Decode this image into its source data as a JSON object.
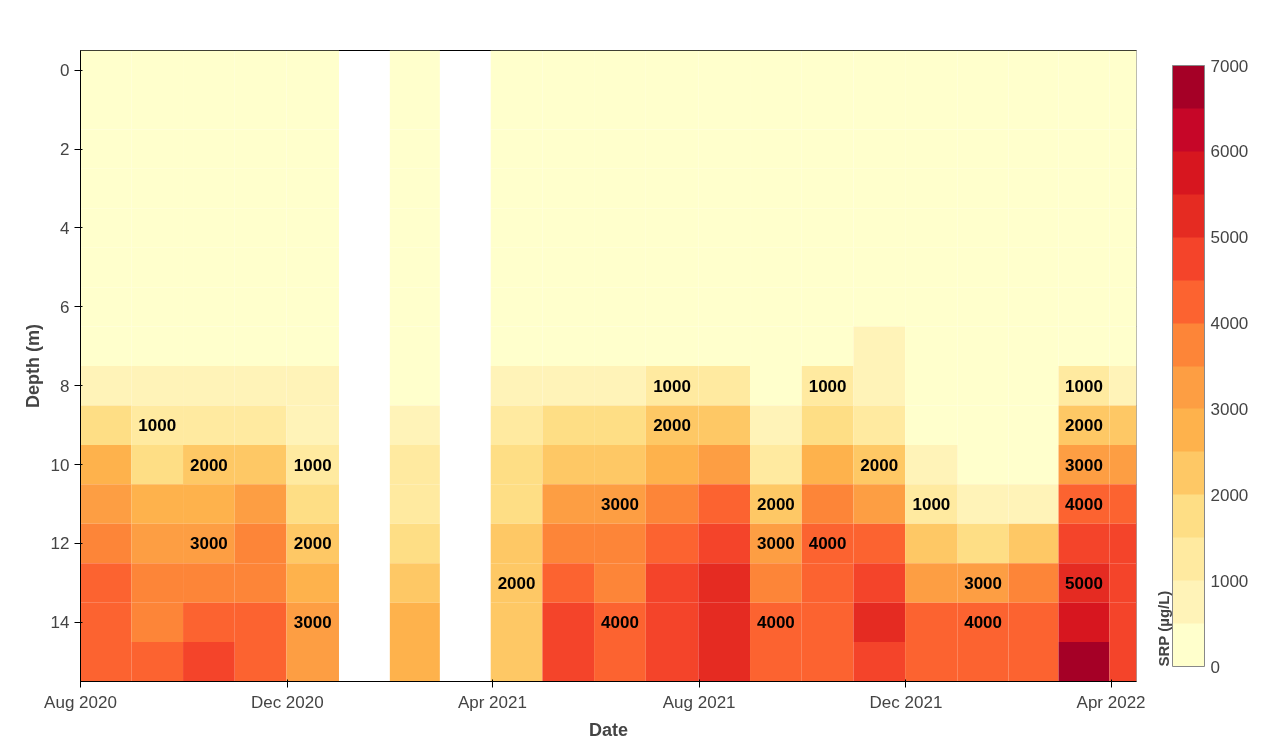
{
  "chart_data": {
    "type": "heatmap",
    "xlabel": "Date",
    "ylabel": "Depth (m)",
    "clabel": "SRP (µg/L)",
    "x": [
      "2020-08-16",
      "2020-09-15",
      "2020-10-16",
      "2020-11-15",
      "2020-12-16",
      "2021-01-16",
      "2021-02-14",
      "2021-03-16",
      "2021-04-15",
      "2021-05-16",
      "2021-06-15",
      "2021-07-16",
      "2021-08-16",
      "2021-09-15",
      "2021-10-16",
      "2021-11-15",
      "2021-12-16",
      "2022-01-16",
      "2022-02-14",
      "2022-03-16",
      "2022-04-15"
    ],
    "y_categories": [
      "0",
      null,
      "2",
      null,
      "4",
      null,
      "6",
      null,
      "8",
      null,
      "10",
      null,
      "12",
      null,
      "14",
      null
    ],
    "cells": [
      [
        250,
        250,
        250,
        250,
        250,
        null,
        250,
        null,
        250,
        250,
        250,
        250,
        250,
        250,
        250,
        250,
        250,
        250,
        250,
        250,
        250
      ],
      [
        250,
        250,
        250,
        250,
        250,
        null,
        250,
        null,
        250,
        250,
        250,
        250,
        250,
        250,
        250,
        250,
        250,
        250,
        250,
        250,
        250
      ],
      [
        250,
        250,
        250,
        250,
        250,
        null,
        250,
        null,
        250,
        250,
        250,
        250,
        250,
        250,
        250,
        250,
        250,
        250,
        250,
        250,
        250
      ],
      [
        250,
        250,
        250,
        250,
        250,
        null,
        250,
        null,
        250,
        250,
        250,
        250,
        250,
        250,
        250,
        250,
        250,
        250,
        250,
        250,
        250
      ],
      [
        250,
        250,
        250,
        250,
        250,
        null,
        250,
        null,
        250,
        250,
        250,
        250,
        250,
        250,
        250,
        250,
        250,
        250,
        250,
        250,
        250
      ],
      [
        250,
        250,
        250,
        250,
        250,
        null,
        250,
        null,
        250,
        250,
        250,
        250,
        250,
        250,
        250,
        250,
        250,
        250,
        250,
        250,
        250
      ],
      [
        250,
        250,
        250,
        250,
        250,
        null,
        250,
        null,
        250,
        250,
        250,
        250,
        250,
        250,
        250,
        250,
        250,
        250,
        250,
        250,
        250
      ],
      [
        250,
        250,
        250,
        250,
        250,
        null,
        250,
        null,
        250,
        250,
        250,
        250,
        250,
        250,
        250,
        600,
        250,
        250,
        250,
        250,
        250
      ],
      [
        750,
        600,
        700,
        700,
        600,
        null,
        250,
        null,
        700,
        700,
        800,
        1000,
        1000,
        400,
        1000,
        700,
        250,
        250,
        250,
        1000,
        800
      ],
      [
        1500,
        1000,
        1400,
        1400,
        800,
        null,
        700,
        null,
        1200,
        1500,
        1600,
        2000,
        2000,
        700,
        1800,
        1400,
        400,
        300,
        300,
        2000,
        2000
      ],
      [
        2500,
        1800,
        2000,
        2300,
        1000,
        null,
        1000,
        null,
        1700,
        2200,
        2300,
        2900,
        3200,
        1000,
        2800,
        2000,
        700,
        400,
        450,
        3000,
        3000
      ],
      [
        3000,
        2500,
        2600,
        3000,
        1500,
        null,
        1300,
        null,
        1900,
        3000,
        3000,
        3600,
        4200,
        2000,
        3700,
        3000,
        1000,
        700,
        800,
        4000,
        4000
      ],
      [
        3800,
        3000,
        3000,
        3600,
        2000,
        null,
        1800,
        null,
        2100,
        3700,
        3500,
        4200,
        4700,
        3000,
        4000,
        4000,
        2000,
        1800,
        2000,
        4600,
        4500
      ],
      [
        4000,
        3500,
        3800,
        3800,
        2500,
        null,
        2200,
        null,
        2000,
        4200,
        3800,
        4500,
        5000,
        3500,
        4200,
        4700,
        3000,
        3000,
        3700,
        5000,
        4600
      ],
      [
        4300,
        3900,
        4300,
        4100,
        3000,
        null,
        2700,
        null,
        2300,
        4600,
        4000,
        4700,
        5000,
        4000,
        4400,
        5000,
        4000,
        4000,
        4300,
        5800,
        4700
      ],
      [
        4300,
        4000,
        4600,
        4100,
        3300,
        null,
        2700,
        null,
        2300,
        4600,
        4300,
        4700,
        5000,
        4200,
        4400,
        4900,
        4200,
        4300,
        4300,
        6500,
        4700
      ]
    ],
    "cell_labels": [
      [
        null,
        null,
        null,
        null,
        null,
        null,
        null,
        null,
        null,
        null,
        null,
        null,
        null,
        null,
        null,
        null,
        null,
        null,
        null,
        null,
        null
      ],
      [
        null,
        null,
        null,
        null,
        null,
        null,
        null,
        null,
        null,
        null,
        null,
        null,
        null,
        null,
        null,
        null,
        null,
        null,
        null,
        null,
        null
      ],
      [
        null,
        null,
        null,
        null,
        null,
        null,
        null,
        null,
        null,
        null,
        null,
        null,
        null,
        null,
        null,
        null,
        null,
        null,
        null,
        null,
        null
      ],
      [
        null,
        null,
        null,
        null,
        null,
        null,
        null,
        null,
        null,
        null,
        null,
        null,
        null,
        null,
        null,
        null,
        null,
        null,
        null,
        null,
        null
      ],
      [
        null,
        null,
        null,
        null,
        null,
        null,
        null,
        null,
        null,
        null,
        null,
        null,
        null,
        null,
        null,
        null,
        null,
        null,
        null,
        null,
        null
      ],
      [
        null,
        null,
        null,
        null,
        null,
        null,
        null,
        null,
        null,
        null,
        null,
        null,
        null,
        null,
        null,
        null,
        null,
        null,
        null,
        null,
        null
      ],
      [
        null,
        null,
        null,
        null,
        null,
        null,
        null,
        null,
        null,
        null,
        null,
        null,
        null,
        null,
        null,
        null,
        null,
        null,
        null,
        null,
        null
      ],
      [
        null,
        null,
        null,
        null,
        null,
        null,
        null,
        null,
        null,
        null,
        null,
        null,
        null,
        null,
        null,
        null,
        null,
        null,
        null,
        null,
        null
      ],
      [
        null,
        null,
        null,
        null,
        null,
        null,
        null,
        null,
        null,
        null,
        null,
        "1000",
        null,
        null,
        "1000",
        null,
        null,
        null,
        null,
        "1000",
        null
      ],
      [
        null,
        "1000",
        null,
        null,
        null,
        null,
        null,
        null,
        null,
        null,
        null,
        "2000",
        null,
        null,
        null,
        null,
        null,
        null,
        null,
        "2000",
        null
      ],
      [
        null,
        null,
        "2000",
        null,
        "1000",
        null,
        null,
        null,
        null,
        null,
        null,
        null,
        null,
        null,
        null,
        "2000",
        null,
        null,
        null,
        "3000",
        null
      ],
      [
        null,
        null,
        null,
        null,
        null,
        null,
        null,
        null,
        null,
        null,
        "3000",
        null,
        null,
        "2000",
        null,
        null,
        "1000",
        null,
        null,
        "4000",
        null
      ],
      [
        null,
        null,
        "3000",
        null,
        "2000",
        null,
        null,
        null,
        null,
        null,
        null,
        null,
        null,
        "3000",
        "4000",
        null,
        null,
        null,
        null,
        null,
        null
      ],
      [
        null,
        null,
        null,
        null,
        null,
        null,
        null,
        null,
        "2000",
        null,
        null,
        null,
        null,
        null,
        null,
        null,
        null,
        "3000",
        null,
        "5000",
        null
      ],
      [
        null,
        null,
        null,
        null,
        "3000",
        null,
        null,
        null,
        null,
        null,
        "4000",
        null,
        null,
        "4000",
        null,
        null,
        null,
        "4000",
        null,
        null,
        null
      ],
      [
        null,
        null,
        null,
        null,
        null,
        null,
        null,
        null,
        null,
        null,
        null,
        null,
        null,
        null,
        null,
        null,
        null,
        null,
        null,
        null,
        null
      ]
    ],
    "colors": [
      "#ffffcc",
      "#fff3b8",
      "#ffeaa0",
      "#fede85",
      "#fec865",
      "#feb24c",
      "#fd9e43",
      "#fd8538",
      "#fc6330",
      "#f4442a",
      "#e52b22",
      "#d7161f",
      "#c60628",
      "#a50026"
    ],
    "clim": [
      0,
      7000
    ],
    "cticks": [
      0,
      1000,
      2000,
      3000,
      4000,
      5000,
      6000,
      7000
    ],
    "xlim": [
      "2020-08-01",
      "2022-04-16"
    ],
    "xticks": [
      {
        "value": "2020-08-01",
        "label": "Aug 2020"
      },
      {
        "value": "2020-12-01",
        "label": "Dec 2020"
      },
      {
        "value": "2021-04-01",
        "label": "Apr 2021"
      },
      {
        "value": "2021-08-01",
        "label": "Aug 2021"
      },
      {
        "value": "2021-12-01",
        "label": "Dec 2021"
      },
      {
        "value": "2022-04-01",
        "label": "Apr 2022"
      }
    ],
    "grid": false
  }
}
